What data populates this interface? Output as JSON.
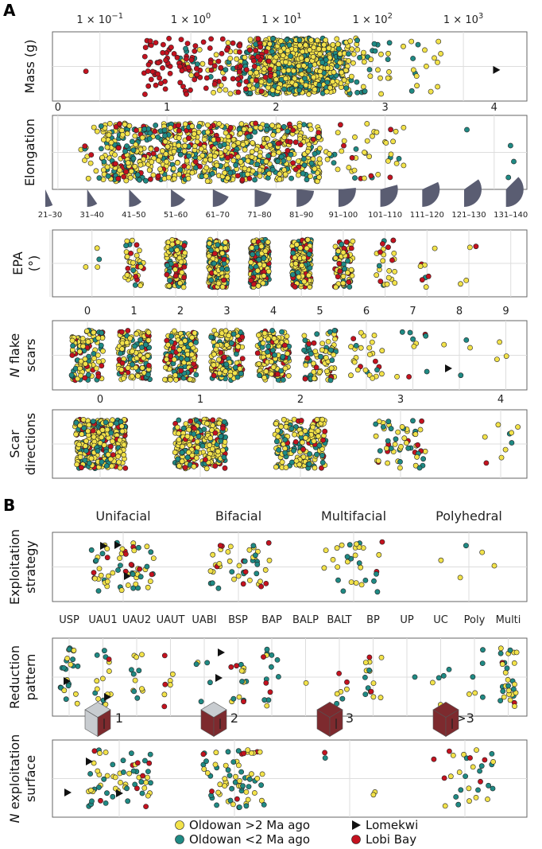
{
  "colors": {
    "oldowan_old": "#f2e24a",
    "oldowan_young": "#1f8a84",
    "lomekwi": "#111111",
    "lobi_bay": "#c4121f",
    "panel_border": "#666666",
    "grid": "#dddddd",
    "cube_top": "#c8ccd0",
    "cube_side": "#7d2a2e",
    "protractor": "#5a5d72"
  },
  "panel_labels": [
    "A",
    "B"
  ],
  "legend": [
    {
      "label": "Oldowan >2 Ma ago",
      "color": "#f2e24a",
      "marker": "circle"
    },
    {
      "label": "Oldowan <2 Ma ago",
      "color": "#1f8a84",
      "marker": "circle"
    },
    {
      "label": "Lomekwi",
      "color": "#111111",
      "marker": "triangle"
    },
    {
      "label": "Lobi Bay",
      "color": "#c4121f",
      "marker": "circle"
    }
  ],
  "chart_data": [
    {
      "id": "mass",
      "type": "scatter",
      "ylabel": "Mass (g)",
      "x_scale": "log",
      "xlim": [
        0.03,
        5000
      ],
      "ticks": [
        {
          "value": 0.1,
          "base": "1 × 10",
          "exp": "−1"
        },
        {
          "value": 1,
          "base": "1 × 10",
          "exp": "0"
        },
        {
          "value": 10,
          "base": "1 × 10",
          "exp": "1"
        },
        {
          "value": 100,
          "base": "1 × 10",
          "exp": "2"
        },
        {
          "value": 1000,
          "base": "1 × 10",
          "exp": "3"
        }
      ],
      "distribution": {
        "yellow_teal_range": [
          1.5,
          150
        ],
        "lobi_bay_range": [
          0.3,
          8
        ],
        "count_approx": 900
      },
      "highlighted_points": [
        {
          "group": "lobi_bay",
          "x": 0.07
        },
        {
          "group": "lomekwi",
          "x": 2300
        }
      ]
    },
    {
      "id": "elongation",
      "type": "scatter",
      "ylabel": "Elongation",
      "xlim": [
        -0.05,
        4.3
      ],
      "ticks": [
        "0",
        "1",
        "2",
        "3",
        "4"
      ],
      "distribution": {
        "range": [
          0.2,
          4.2
        ],
        "dense_range": [
          0.4,
          2.4
        ],
        "count_approx": 900
      },
      "outlier_points": [
        {
          "group": "oldowan_young",
          "x": 3.75
        },
        {
          "group": "oldowan_young",
          "x": 4.15
        },
        {
          "group": "oldowan_young",
          "x": 4.18
        },
        {
          "group": "oldowan_young",
          "x": 4.13
        }
      ]
    },
    {
      "id": "epa",
      "type": "scatter",
      "ylabel": "EPA (°)",
      "categories": [
        "21–30",
        "31–40",
        "41–50",
        "51–60",
        "61–70",
        "71–80",
        "81–90",
        "91–100",
        "101–110",
        "111–120",
        "121–130",
        "131–140"
      ],
      "counts_approx": [
        0,
        4,
        40,
        140,
        240,
        260,
        230,
        70,
        25,
        8,
        4,
        0
      ]
    },
    {
      "id": "flake_scars",
      "type": "scatter",
      "ylabel": "N flake scars",
      "categories": [
        "0",
        "1",
        "2",
        "3",
        "4",
        "5",
        "6",
        "7",
        "8",
        "9"
      ],
      "counts_approx": [
        120,
        160,
        170,
        150,
        140,
        80,
        28,
        10,
        4,
        3
      ]
    },
    {
      "id": "scar_directions",
      "type": "scatter",
      "ylabel": "Scar directions",
      "categories": [
        "0",
        "1",
        "2",
        "3",
        "4"
      ],
      "counts_approx": [
        300,
        260,
        180,
        55,
        9
      ]
    },
    {
      "id": "exploitation_strategy",
      "type": "scatter",
      "ylabel": "Exploitation strategy",
      "categories": [
        "Unifacial",
        "Bifacial",
        "Multifacial",
        "Polyhedral"
      ],
      "counts_approx": [
        60,
        45,
        30,
        5
      ]
    },
    {
      "id": "reduction_pattern",
      "type": "scatter",
      "ylabel": "Reduction pattern",
      "categories": [
        "USP",
        "UAU1",
        "UAU2",
        "UAUT",
        "UABI",
        "BSP",
        "BAP",
        "BALP",
        "BALT",
        "BP",
        "UP",
        "UC",
        "Poly",
        "Multi"
      ],
      "counts_approx": [
        24,
        16,
        12,
        7,
        5,
        14,
        14,
        1,
        7,
        15,
        1,
        5,
        6,
        30
      ]
    },
    {
      "id": "exploitation_surface",
      "type": "scatter",
      "ylabel": "N exploitation surface",
      "categories": [
        "1",
        "2",
        "3",
        ">3"
      ],
      "counts_approx": [
        60,
        70,
        4,
        30
      ]
    }
  ]
}
